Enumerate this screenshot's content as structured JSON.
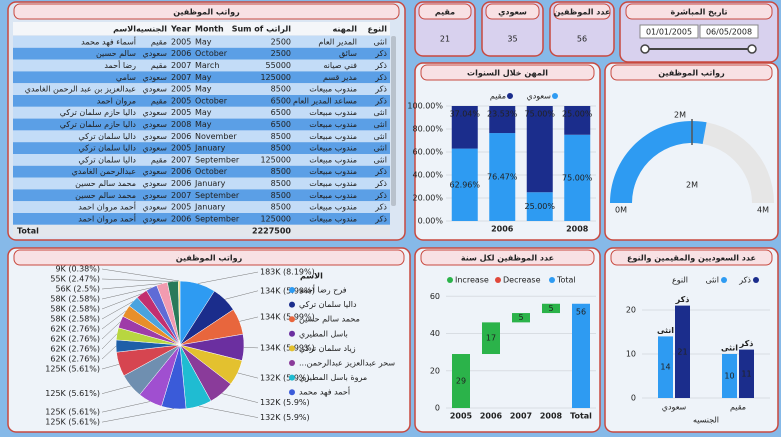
{
  "table": {
    "title": "رواتب الموظفين",
    "columns": [
      "الاسم",
      "الجنسيه",
      "Year",
      "Month",
      "Sum of الراتب",
      "المهنه",
      "النوع"
    ],
    "rows": [
      [
        "أسماء فهد محمد",
        "مقيم",
        "2005",
        "May",
        "2500",
        "المدير العام",
        "انثى"
      ],
      [
        "سالم حسين",
        "سعودي",
        "2006",
        "October",
        "2500",
        "سائق",
        "ذكر"
      ],
      [
        "رضا أحمد",
        "مقيم",
        "2007",
        "March",
        "55000",
        "فني صيانه",
        "ذكر"
      ],
      [
        "سامي",
        "سعودي",
        "2007",
        "May",
        "125000",
        "مدير قسم",
        "ذكر"
      ],
      [
        "عبدالعزيز بن عبد الرحمن الغامدي",
        "سعودي",
        "2005",
        "May",
        "8500",
        "مندوب مبيعات",
        "ذكر"
      ],
      [
        "مروان احمد",
        "مقيم",
        "2005",
        "October",
        "6500",
        "مساعد المدير العام",
        "ذكر"
      ],
      [
        "داليا حازم سلمان تركي",
        "سعودي",
        "2005",
        "May",
        "6500",
        "مندوب مبيعات",
        "انثى"
      ],
      [
        "داليا حازم سلمان تركي",
        "سعودي",
        "2008",
        "May",
        "6500",
        "مندوب مبيعات",
        "انثى"
      ],
      [
        "داليا سلمان تركي",
        "سعودي",
        "2006",
        "November",
        "8500",
        "مندوب مبيعات",
        "انثى"
      ],
      [
        "داليا سلمان تركي",
        "سعودي",
        "2005",
        "January",
        "8500",
        "مندوب مبيعات",
        "انثى"
      ],
      [
        "داليا سلمان تركي",
        "مقيم",
        "2007",
        "September",
        "125000",
        "مندوب مبيعات",
        "انثى"
      ],
      [
        "عبدالرحمن الغامدي",
        "سعودي",
        "2006",
        "October",
        "8500",
        "مندوب مبيعات",
        "ذكر"
      ],
      [
        "محمد سالم حسين",
        "سعودي",
        "2006",
        "January",
        "8500",
        "مندوب مبيعات",
        "ذكر"
      ],
      [
        "محمد سالم حسين",
        "سعودي",
        "2007",
        "September",
        "8500",
        "مندوب مبيعات",
        "ذكر"
      ],
      [
        "أحمد مروان احمد",
        "سعودي",
        "2005",
        "January",
        "8500",
        "مندوب مبيعات",
        "ذكر"
      ],
      [
        "أحمد مروان احمد",
        "سعودي",
        "2006",
        "September",
        "125000",
        "مندوب مبيعات",
        "ذكر"
      ]
    ],
    "total_label": "Total",
    "total": "2227500"
  },
  "cards": [
    {
      "label": "مقيم",
      "value": "21"
    },
    {
      "label": "سعودي",
      "value": "35"
    },
    {
      "label": "عدد الموظفين",
      "value": "56"
    }
  ],
  "date_slicer": {
    "title": "تاريخ المباشرة",
    "start": "01/01/2005",
    "end": "06/05/2008"
  },
  "chart_data": [
    {
      "type": "stacked_bar_100",
      "title": "المهن خلال السنوات",
      "categories": [
        null,
        "2006",
        null,
        "2008"
      ],
      "series": [
        {
          "name": "سعودي",
          "color": "#2e9bf2",
          "values": [
            62.96,
            76.47,
            25,
            75
          ],
          "value_labels": [
            "62.96%",
            "76.47%",
            "25.00%",
            "75.00%"
          ]
        },
        {
          "name": "مقيم",
          "color": "#1b2d8c",
          "values": [
            37.04,
            23.53,
            75,
            25
          ],
          "value_labels": [
            "37.04%",
            "23.53%",
            "75.00%",
            "25.00%"
          ]
        }
      ],
      "ylim": [
        0,
        100
      ],
      "yticks": [
        {
          "value": 0,
          "label": "0.00%"
        },
        {
          "value": 20,
          "label": "20.00%"
        },
        {
          "value": 40,
          "label": "40.00%"
        },
        {
          "value": 60,
          "label": "60.00%"
        },
        {
          "value": 80,
          "label": "80.00%"
        },
        {
          "value": 100,
          "label": "100.00%"
        }
      ]
    },
    {
      "type": "gauge",
      "title": "رواتب الموظفين",
      "value": 2227500,
      "value_label": "2M",
      "min": 0,
      "min_label": "0M",
      "max": 4000000,
      "max_label": "4M",
      "target": 2000000,
      "target_label": "2M",
      "color": "#2e9bf2",
      "track_color": "#e6e6e6"
    },
    {
      "type": "pie",
      "title": "رواتب الموظفين",
      "values": [
        183000,
        134000,
        134000,
        134000,
        132000,
        132000,
        132000,
        125000,
        125000,
        125000,
        125000,
        62000,
        62000,
        62000,
        62000,
        58000,
        58000,
        58000,
        56000,
        55000,
        9000
      ],
      "value_labels": [
        "183K (8.19%)",
        "134K (5.99%)",
        "134K (5.99%)",
        "134K (5.99%)",
        "132K (5.9%)",
        "132K (5.9%)",
        "132K (5.9%)",
        "125K (5.61%)",
        "125K (5.61%)",
        "125K (5.61%)",
        "125K (5.61%)",
        "62K (2.76%)",
        "62K (2.76%)",
        "62K (2.76%)",
        "62K (2.76%)",
        "58K (2.58%)",
        "58K (2.58%)",
        "58K (2.58%)",
        "56K (2.5%)",
        "55K (2.47%)",
        "9K (0.38%)"
      ],
      "colors": [
        "#2e9bf2",
        "#1b2d8c",
        "#e8663d",
        "#6b2fa0",
        "#e3c12f",
        "#8a3b9a",
        "#1fbcd2",
        "#3a5bd9",
        "#a04fd0",
        "#6f8fb0",
        "#d64550",
        "#1e5fa8",
        "#b8d640",
        "#9e3ca8",
        "#e88f2a",
        "#4aa3df",
        "#c22f70",
        "#5f6bd6",
        "#f29bb0",
        "#2a7a5a",
        "#f5d76e"
      ],
      "legend_title": "الاسم",
      "legend": [
        {
          "name": "فرح رضا أحمد",
          "color": "#2e9bf2"
        },
        {
          "name": "داليا سلمان تركي",
          "color": "#1b2d8c"
        },
        {
          "name": "محمد سالم حسين",
          "color": "#e8663d"
        },
        {
          "name": "باسل المطيري",
          "color": "#6b2fa0"
        },
        {
          "name": "زياد سلمان تركي",
          "color": "#e3c12f"
        },
        {
          "name": "...سحر عبدالعزيز عبدالرحمن",
          "color": "#8a3b9a"
        },
        {
          "name": "مروة باسل المطيري",
          "color": "#1fbcd2"
        },
        {
          "name": "أحمد فهد محمد",
          "color": "#3a5bd9"
        }
      ]
    },
    {
      "type": "waterfall",
      "title": "عدد الموظفين لكل سنة",
      "categories": [
        "2005",
        "2006",
        "2007",
        "2008"
      ],
      "values": [
        29,
        17,
        5,
        5
      ],
      "total_label": "Total",
      "total": 56,
      "legend": [
        {
          "name": "Increase",
          "color": "#2bb34a"
        },
        {
          "name": "Decrease",
          "color": "#e0483a"
        },
        {
          "name": "Total",
          "color": "#2e9bf2"
        }
      ],
      "ylim": [
        0,
        65
      ],
      "yticks": [
        0,
        20,
        40,
        60
      ]
    },
    {
      "type": "grouped_bar",
      "title": "عدد السعوديين والمقيمين والنوع",
      "categories": [
        "سعودي",
        "مقيم"
      ],
      "xlabel": "الجنسيه",
      "legend_title": "النوع",
      "series": [
        {
          "name": "انثى",
          "color": "#2e9bf2",
          "values": [
            14,
            10
          ]
        },
        {
          "name": "ذكر",
          "color": "#1b2d8c",
          "values": [
            21,
            11
          ]
        }
      ],
      "ylim": [
        0,
        25
      ],
      "yticks": [
        0,
        10,
        20
      ]
    }
  ]
}
